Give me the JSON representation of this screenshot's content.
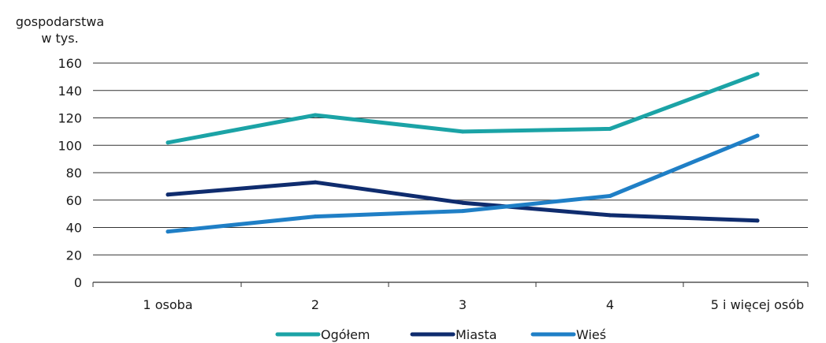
{
  "chart_data": {
    "type": "line",
    "ylabel_line1": "gospodarstwa",
    "ylabel_line2": "w tys.",
    "categories": [
      "1 osoba",
      "2",
      "3",
      "4",
      "5 i więcej osób"
    ],
    "ylim": [
      0,
      160
    ],
    "yticks": [
      "0",
      "20",
      "40",
      "60",
      "80",
      "100",
      "120",
      "140",
      "160"
    ],
    "grid": true,
    "legend_position": "bottom",
    "series": [
      {
        "name": "Ogółem",
        "color": "#1BA3A6",
        "values": [
          102,
          122,
          110,
          112,
          152
        ]
      },
      {
        "name": "Miasta",
        "color": "#0F2C6E",
        "values": [
          64,
          73,
          58,
          49,
          45
        ]
      },
      {
        "name": "Wieś",
        "color": "#1F7FC6",
        "values": [
          37,
          48,
          52,
          63,
          107
        ]
      }
    ]
  }
}
